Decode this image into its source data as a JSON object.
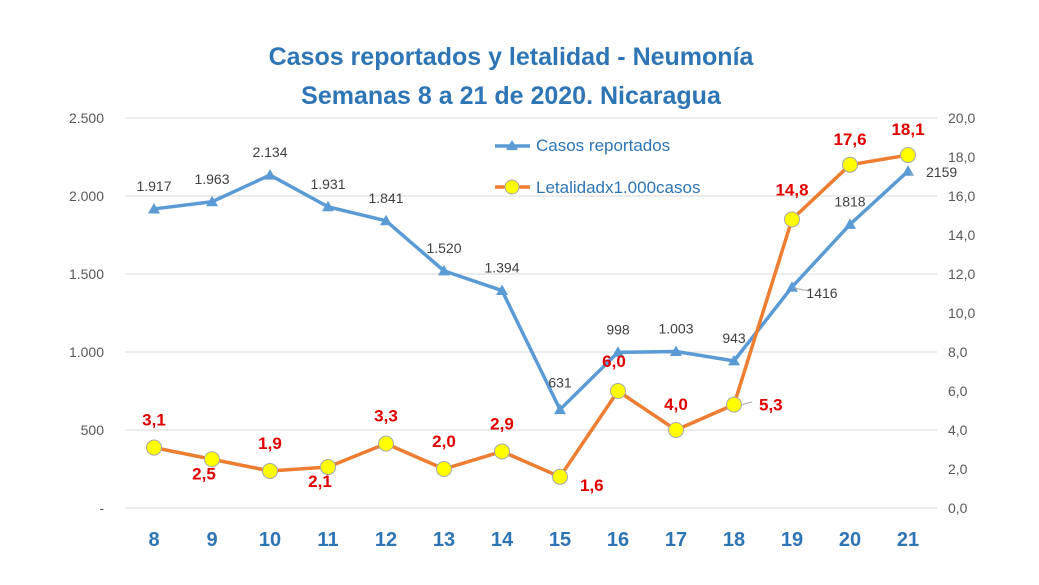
{
  "chart_data": {
    "type": "line",
    "title": "Casos reportados y letalidad - Neumonía",
    "subtitle": "Semanas 8 a 21 de 2020. Nicaragua",
    "categories": [
      "8",
      "9",
      "10",
      "11",
      "12",
      "13",
      "14",
      "15",
      "16",
      "17",
      "18",
      "19",
      "20",
      "21"
    ],
    "y_left": {
      "ylim": [
        0,
        2500
      ],
      "tick_labels": [
        "-",
        "500",
        "1.000",
        "1.500",
        "2.000",
        "2.500"
      ]
    },
    "y_right": {
      "ylim": [
        0,
        20
      ],
      "tick_labels": [
        "0,0",
        "2,0",
        "4,0",
        "6,0",
        "8,0",
        "10,0",
        "12,0",
        "14,0",
        "16,0",
        "18,0",
        "20,0"
      ]
    },
    "grid": true,
    "legend_position": "top-center",
    "series": [
      {
        "name": "Casos reportados",
        "axis": "left",
        "color": "#5B9BD5",
        "marker": "triangle",
        "values": [
          1917,
          1963,
          2134,
          1931,
          1841,
          1520,
          1394,
          631,
          998,
          1003,
          943,
          1416,
          1818,
          2159
        ],
        "data_labels": [
          "1.917",
          "1.963",
          "2.134",
          "1.931",
          "1.841",
          "1.520",
          "1.394",
          "631",
          "998",
          "1.003",
          "943",
          "1416",
          "1818",
          "2159"
        ]
      },
      {
        "name": "Letalidadx1.000casos",
        "axis": "right",
        "color": "#ED7D31",
        "marker_color": "#FFFF00",
        "marker": "circle",
        "values": [
          3.1,
          2.5,
          1.9,
          2.1,
          3.3,
          2.0,
          2.9,
          1.6,
          6.0,
          4.0,
          5.3,
          14.8,
          17.6,
          18.1
        ],
        "data_labels": [
          "3,1",
          "2,5",
          "1,9",
          "2,1",
          "3,3",
          "2,0",
          "2,9",
          "1,6",
          "6,0",
          "4,0",
          "5,3",
          "14,8",
          "17,6",
          "18,1"
        ]
      }
    ]
  }
}
